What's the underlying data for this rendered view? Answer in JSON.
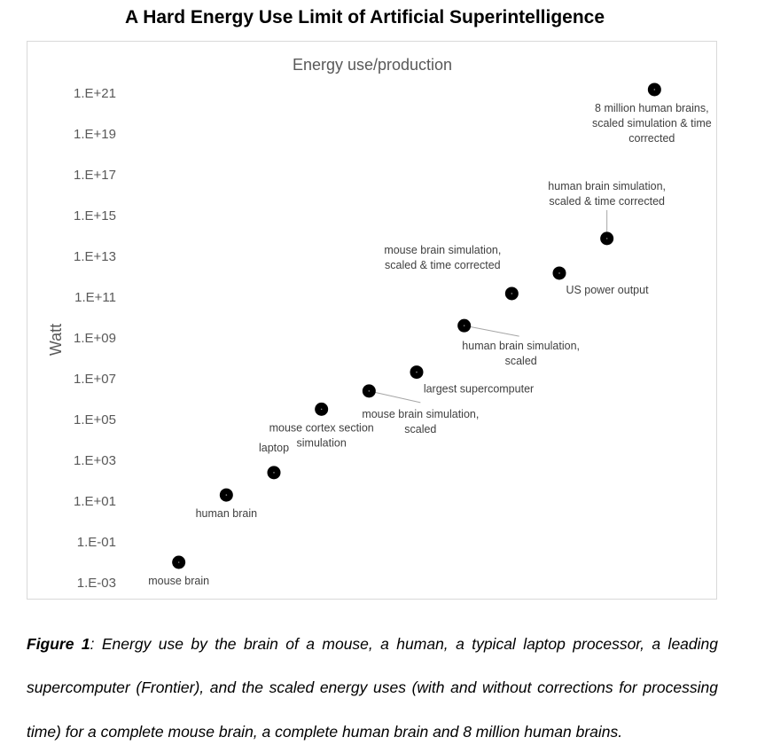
{
  "figure": {
    "title": "A Hard Energy Use Limit of Artificial Superintelligence",
    "caption_label": "Figure 1",
    "caption_line1_rest": ": Energy use by the brain of a mouse, a human, a typical laptop processor, a leading",
    "caption_line2": "supercomputer (Frontier), and the scaled energy uses (with and without corrections for processing",
    "caption_line3": "time) for a complete mouse brain, a complete human brain and 8 million human brains."
  },
  "chart_data": {
    "type": "scatter",
    "title": "Energy use/production",
    "xlabel": "",
    "ylabel": "Watt",
    "y_scale": "log",
    "y_ticks": [
      "1.E+21",
      "1.E+19",
      "1.E+17",
      "1.E+15",
      "1.E+13",
      "1.E+11",
      "1.E+09",
      "1.E+07",
      "1.E+05",
      "1.E+03",
      "1.E+01",
      "1.E-01",
      "1.E-03"
    ],
    "y_tick_values": [
      1e+21,
      1e+19,
      1e+17,
      1000000000000000.0,
      10000000000000.0,
      100000000000.0,
      1000000000.0,
      10000000.0,
      100000.0,
      1000.0,
      10.0,
      0.1,
      0.001
    ],
    "ylim": [
      0.001,
      1e+21
    ],
    "xlim": [
      0,
      12
    ],
    "grid": false,
    "marker_color": "#000000",
    "points": [
      {
        "label": [
          "mouse brain"
        ],
        "x": 1,
        "y": 0.01
      },
      {
        "label": [
          "human brain"
        ],
        "x": 2,
        "y": 20
      },
      {
        "label": [
          "laptop"
        ],
        "x": 3,
        "y": 250
      },
      {
        "label": [
          "mouse cortex section",
          "simulation"
        ],
        "x": 4,
        "y": 320000
      },
      {
        "label": [
          "mouse brain simulation,",
          "scaled"
        ],
        "x": 5,
        "y": 2500000
      },
      {
        "label": [
          "largest supercomputer"
        ],
        "x": 6,
        "y": 21000000
      },
      {
        "label": [
          "human brain simulation,",
          "scaled"
        ],
        "x": 7,
        "y": 4000000000
      },
      {
        "label": [
          "mouse brain simulation,",
          "scaled & time corrected"
        ],
        "x": 8,
        "y": 150000000000
      },
      {
        "label": [
          "US power output"
        ],
        "x": 9,
        "y": 1500000000000
      },
      {
        "label": [
          "human brain simulation,",
          "scaled & time corrected"
        ],
        "x": 10,
        "y": 75000000000000
      },
      {
        "label": [
          "8 million human brains,",
          "scaled simulation & time",
          "corrected"
        ],
        "x": 11,
        "y": 1500000000000000000000
      }
    ]
  }
}
